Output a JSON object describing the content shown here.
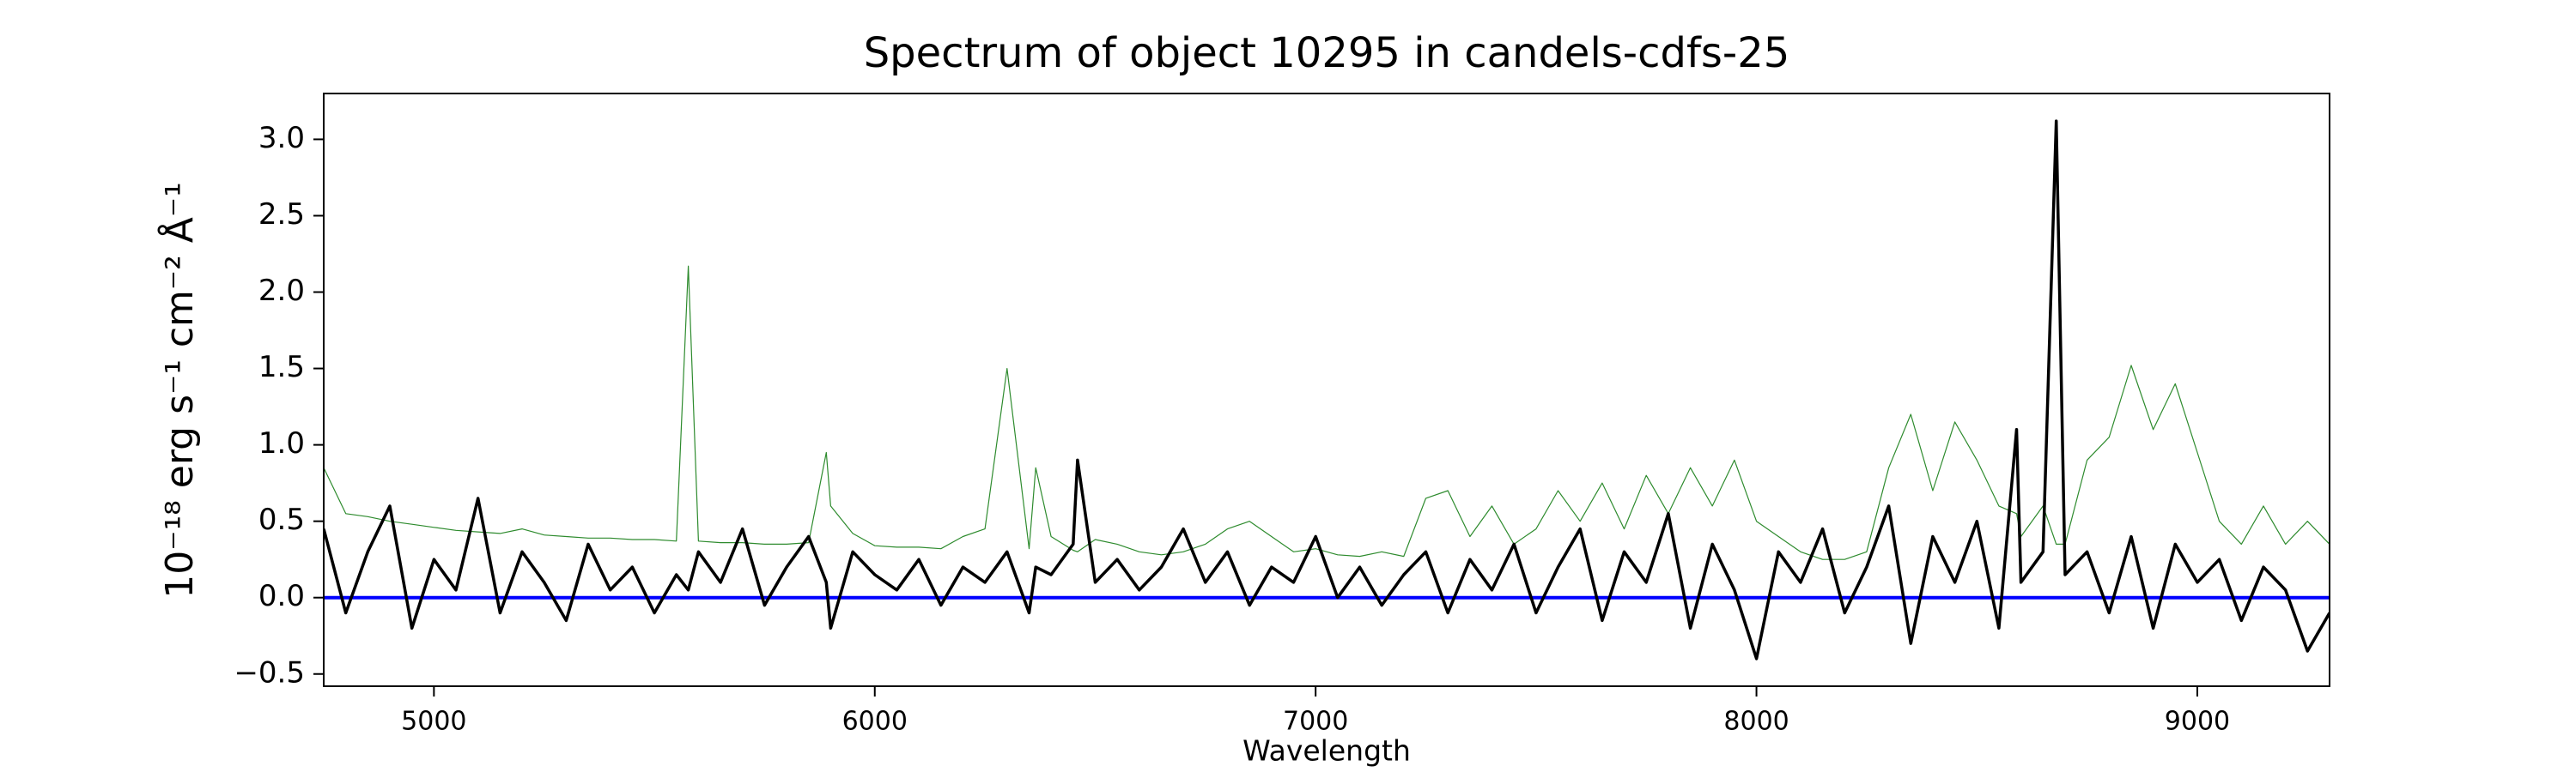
{
  "chart_data": {
    "type": "line",
    "title": "Spectrum of object 10295 in candels-cdfs-25",
    "x_label": "Wavelength",
    "y_label": "10⁻¹⁸ erg s⁻¹ cm⁻² Å⁻¹",
    "x": [
      4750,
      4800,
      4850,
      4900,
      4950,
      5000,
      5050,
      5100,
      5150,
      5200,
      5250,
      5300,
      5350,
      5400,
      5450,
      5500,
      5550,
      5577,
      5600,
      5650,
      5700,
      5750,
      5800,
      5850,
      5890,
      5900,
      5950,
      6000,
      6050,
      6100,
      6150,
      6200,
      6250,
      6300,
      6350,
      6365,
      6400,
      6450,
      6460,
      6500,
      6550,
      6600,
      6650,
      6700,
      6750,
      6800,
      6850,
      6900,
      6950,
      7000,
      7050,
      7100,
      7150,
      7200,
      7250,
      7300,
      7350,
      7400,
      7450,
      7500,
      7550,
      7600,
      7650,
      7700,
      7750,
      7800,
      7850,
      7900,
      7950,
      8000,
      8050,
      8100,
      8150,
      8200,
      8250,
      8300,
      8350,
      8400,
      8450,
      8500,
      8550,
      8590,
      8600,
      8650,
      8680,
      8700,
      8750,
      8800,
      8850,
      8900,
      8950,
      9000,
      9050,
      9100,
      9150,
      9200,
      9250,
      9300
    ],
    "series": [
      {
        "color": "#2e8b2e",
        "width": 1.2,
        "values": [
          0.85,
          0.55,
          0.53,
          0.5,
          0.48,
          0.46,
          0.44,
          0.43,
          0.42,
          0.45,
          0.41,
          0.4,
          0.39,
          0.39,
          0.38,
          0.38,
          0.37,
          2.17,
          0.37,
          0.36,
          0.36,
          0.35,
          0.35,
          0.36,
          0.95,
          0.6,
          0.42,
          0.34,
          0.33,
          0.33,
          0.32,
          0.4,
          0.45,
          1.5,
          0.32,
          0.85,
          0.4,
          0.31,
          0.3,
          0.38,
          0.35,
          0.3,
          0.28,
          0.3,
          0.35,
          0.45,
          0.5,
          0.4,
          0.3,
          0.32,
          0.28,
          0.27,
          0.3,
          0.27,
          0.65,
          0.7,
          0.4,
          0.6,
          0.35,
          0.45,
          0.7,
          0.5,
          0.75,
          0.45,
          0.8,
          0.55,
          0.85,
          0.6,
          0.9,
          0.5,
          0.4,
          0.3,
          0.25,
          0.25,
          0.3,
          0.85,
          1.2,
          0.7,
          1.15,
          0.9,
          0.6,
          0.55,
          0.4,
          0.6,
          0.35,
          0.35,
          0.9,
          1.05,
          1.52,
          1.1,
          1.4,
          0.95,
          0.5,
          0.35,
          0.6,
          0.35,
          0.5,
          0.35
        ]
      },
      {
        "color": "#0000ff",
        "width": 4,
        "x": [
          4750,
          9300
        ],
        "values": [
          0,
          0
        ]
      },
      {
        "color": "#000000",
        "width": 3.5,
        "values": [
          0.45,
          -0.1,
          0.3,
          0.6,
          -0.2,
          0.25,
          0.05,
          0.65,
          -0.1,
          0.3,
          0.1,
          -0.15,
          0.35,
          0.05,
          0.2,
          -0.1,
          0.15,
          0.05,
          0.3,
          0.1,
          0.45,
          -0.05,
          0.2,
          0.4,
          0.1,
          -0.2,
          0.3,
          0.15,
          0.05,
          0.25,
          -0.05,
          0.2,
          0.1,
          0.3,
          -0.1,
          0.2,
          0.15,
          0.35,
          0.9,
          0.1,
          0.25,
          0.05,
          0.2,
          0.45,
          0.1,
          0.3,
          -0.05,
          0.2,
          0.1,
          0.4,
          0.0,
          0.2,
          -0.05,
          0.15,
          0.3,
          -0.1,
          0.25,
          0.05,
          0.35,
          -0.1,
          0.2,
          0.45,
          -0.15,
          0.3,
          0.1,
          0.55,
          -0.2,
          0.35,
          0.05,
          -0.4,
          0.3,
          0.1,
          0.45,
          -0.1,
          0.2,
          0.6,
          -0.3,
          0.4,
          0.1,
          0.5,
          -0.2,
          1.1,
          0.1,
          0.3,
          3.12,
          0.15,
          0.3,
          -0.1,
          0.4,
          -0.2,
          0.35,
          0.1,
          0.25,
          -0.15,
          0.2,
          0.05,
          -0.35,
          -0.1
        ]
      }
    ],
    "xlim": [
      4750,
      9300
    ],
    "ylim": [
      -0.58,
      3.3
    ],
    "xticks": [
      5000,
      6000,
      7000,
      8000,
      9000
    ],
    "yticks": [
      {
        "value": -0.5,
        "label": "−0.5"
      },
      {
        "value": 0,
        "label": "0.0"
      },
      0.5,
      {
        "value": 1,
        "label": "1.0"
      },
      1.5,
      {
        "value": 2,
        "label": "2.0"
      },
      2.5,
      {
        "value": 3,
        "label": "3.0"
      }
    ]
  }
}
